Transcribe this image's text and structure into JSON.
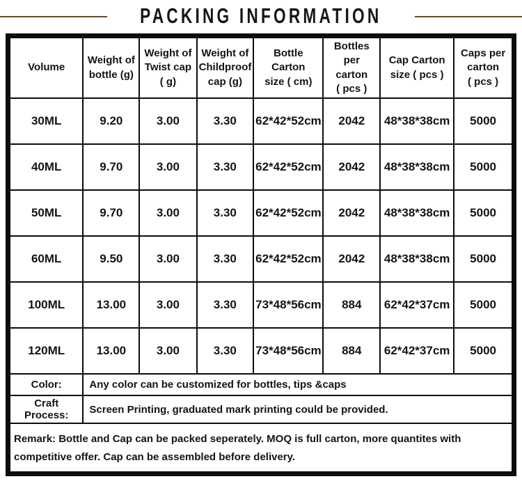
{
  "title": "PACKING INFORMATION",
  "accent_line_color": "#6b4a1d",
  "table": {
    "headers": [
      "Volume",
      "Weight of\nbottle (g)",
      "Weight of\nTwist cap\n( g)",
      "Weight of\nChildproof\ncap  (g)",
      "Bottle Carton\nsize ( cm)",
      "Bottles per\ncarton\n( pcs )",
      "Cap Carton\nsize ( pcs )",
      "Caps per\ncarton\n( pcs )"
    ],
    "rows": [
      [
        "30ML",
        "9.20",
        "3.00",
        "3.30",
        "62*42*52cm",
        "2042",
        "48*38*38cm",
        "5000"
      ],
      [
        "40ML",
        "9.70",
        "3.00",
        "3.30",
        "62*42*52cm",
        "2042",
        "48*38*38cm",
        "5000"
      ],
      [
        "50ML",
        "9.70",
        "3.00",
        "3.30",
        "62*42*52cm",
        "2042",
        "48*38*38cm",
        "5000"
      ],
      [
        "60ML",
        "9.50",
        "3.00",
        "3.30",
        "62*42*52cm",
        "2042",
        "48*38*38cm",
        "5000"
      ],
      [
        "100ML",
        "13.00",
        "3.00",
        "3.30",
        "73*48*56cm",
        "884",
        "62*42*37cm",
        "5000"
      ],
      [
        "120ML",
        "13.00",
        "3.00",
        "3.30",
        "73*48*56cm",
        "884",
        "62*42*37cm",
        "5000"
      ]
    ]
  },
  "footer": {
    "color_label": "Color:",
    "color_value": "Any color can be customized for bottles, tips &caps",
    "craft_label": "Craft Process:",
    "craft_value": "Screen Printing, graduated mark printing could be provided.",
    "remark": "Remark: Bottle and Cap can be packed seperately. MOQ is full carton, more quantites with competitive offer. Cap can be assembled before delivery."
  },
  "chart_data": {
    "type": "table",
    "title": "PACKING INFORMATION",
    "columns": [
      "Volume",
      "Weight of bottle (g)",
      "Weight of Twist cap ( g)",
      "Weight of Childproof cap (g)",
      "Bottle Carton size ( cm)",
      "Bottles per carton ( pcs )",
      "Cap Carton size ( pcs )",
      "Caps per carton ( pcs )"
    ],
    "rows": [
      [
        "30ML",
        9.2,
        3.0,
        3.3,
        "62*42*52cm",
        2042,
        "48*38*38cm",
        5000
      ],
      [
        "40ML",
        9.7,
        3.0,
        3.3,
        "62*42*52cm",
        2042,
        "48*38*38cm",
        5000
      ],
      [
        "50ML",
        9.7,
        3.0,
        3.3,
        "62*42*52cm",
        2042,
        "48*38*38cm",
        5000
      ],
      [
        "60ML",
        9.5,
        3.0,
        3.3,
        "62*42*52cm",
        2042,
        "48*38*38cm",
        5000
      ],
      [
        "100ML",
        13.0,
        3.0,
        3.3,
        "73*48*56cm",
        884,
        "62*42*37cm",
        5000
      ],
      [
        "120ML",
        13.0,
        3.0,
        3.3,
        "73*48*56cm",
        884,
        "62*42*37cm",
        5000
      ]
    ],
    "notes": {
      "color": "Any color can be customized for bottles, tips &caps",
      "craft_process": "Screen Printing, graduated mark printing could be provided.",
      "remark": "Remark: Bottle and Cap can be packed seperately. MOQ is full carton, more quantites with competitive offer. Cap can be assembled before delivery."
    }
  }
}
